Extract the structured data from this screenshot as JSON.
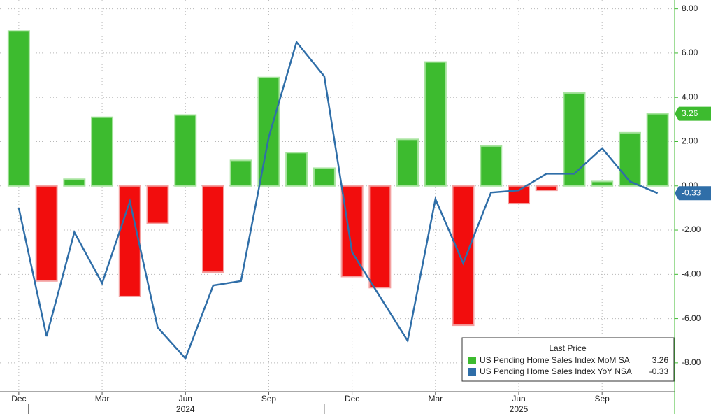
{
  "chart_data": {
    "type": "bar-line",
    "categories": [
      "Dec",
      null,
      null,
      "Mar",
      null,
      null,
      "Jun",
      null,
      null,
      "Sep",
      null,
      null,
      "Dec",
      null,
      null,
      "Mar",
      null,
      null,
      "Jun",
      null,
      null,
      "Sep",
      null,
      null
    ],
    "years": [
      "2024",
      "2025"
    ],
    "series": [
      {
        "name": "US Pending Home Sales Index MoM SA",
        "type": "bar",
        "color": "#3dbb2f",
        "negative_color": "#f20d0d",
        "values": [
          7.0,
          -4.3,
          0.3,
          3.1,
          -5.0,
          -1.7,
          3.2,
          -3.9,
          1.15,
          4.9,
          1.5,
          0.8,
          -4.1,
          -4.6,
          2.1,
          5.6,
          -6.3,
          1.8,
          -0.8,
          -0.2,
          4.2,
          0.2,
          2.4,
          3.26
        ]
      },
      {
        "name": "US Pending Home Sales Index YoY NSA",
        "type": "line",
        "color": "#2f6ea8",
        "values": [
          -1.0,
          -6.8,
          -2.1,
          -4.4,
          -0.7,
          -6.4,
          -7.8,
          -4.5,
          -4.3,
          2.2,
          6.5,
          4.95,
          -3.0,
          -5.0,
          -7.0,
          -0.6,
          -3.5,
          -0.3,
          -0.2,
          0.55,
          0.55,
          1.7,
          0.2,
          -0.33
        ]
      }
    ],
    "legend_title": "Last Price",
    "ylim": [
      -9.3,
      8.4
    ],
    "yticks": [
      {
        "value": 8,
        "label": "8.00"
      },
      {
        "value": 6,
        "label": "6.00"
      },
      {
        "value": 4,
        "label": "4.00"
      },
      {
        "value": 2,
        "label": "2.00"
      },
      {
        "value": 0,
        "label": "0.00"
      },
      {
        "value": -2,
        "label": "-2.00"
      },
      {
        "value": -4,
        "label": "-4.00"
      },
      {
        "value": -6,
        "label": "-6.00"
      },
      {
        "value": -8,
        "label": "-8.00"
      }
    ],
    "grid": true
  }
}
